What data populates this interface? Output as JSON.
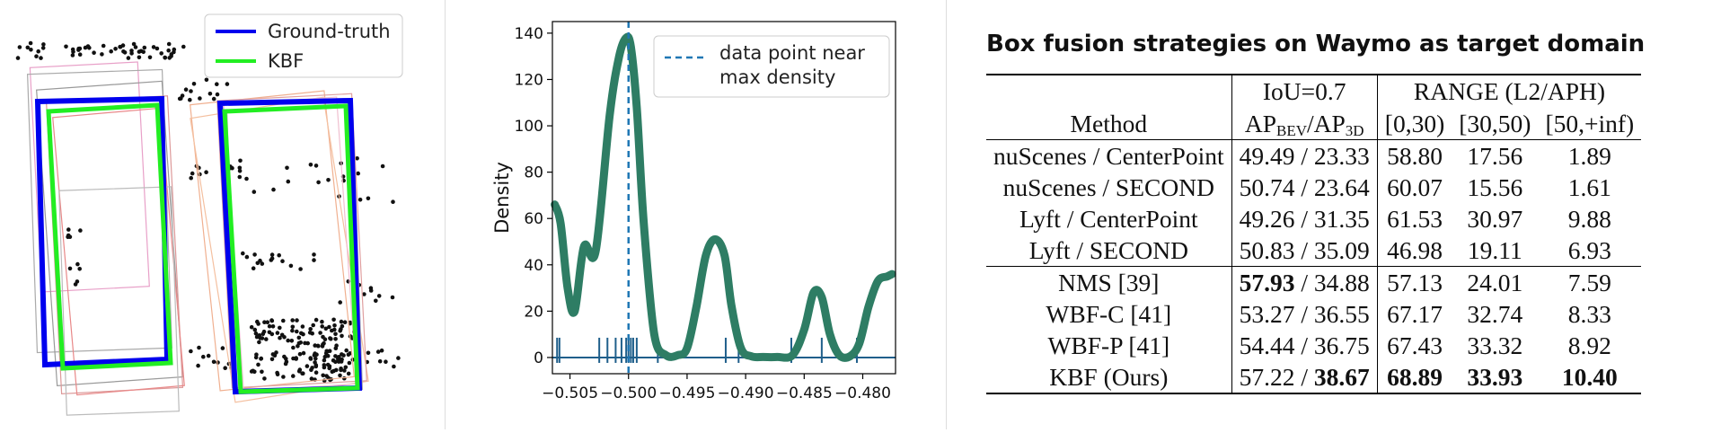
{
  "box_legend": {
    "items": [
      {
        "label": "Ground-truth",
        "color": "#0000ee"
      },
      {
        "label": "KBF",
        "color": "#22ee22"
      }
    ]
  },
  "chart_data": {
    "type": "line",
    "title": "",
    "xlabel": "",
    "ylabel": "Density",
    "xlim": [
      -0.5065,
      -0.4772
    ],
    "ylim": [
      -7,
      145
    ],
    "xticks": [
      -0.505,
      -0.5,
      -0.495,
      -0.49,
      -0.485,
      -0.48
    ],
    "xtick_labels": [
      "−0.505",
      "−0.500",
      "−0.495",
      "−0.490",
      "−0.485",
      "−0.480"
    ],
    "yticks": [
      0,
      20,
      40,
      60,
      80,
      100,
      120,
      140
    ],
    "line_color": "#2e7d64",
    "marker_color": "#1f5f8b",
    "density_curve": {
      "x": [
        -0.5063,
        -0.5058,
        -0.5052,
        -0.5046,
        -0.5038,
        -0.5028,
        -0.5016,
        -0.5008,
        -0.5002,
        -0.4998,
        -0.4993,
        -0.4987,
        -0.4978,
        -0.4968,
        -0.4958,
        -0.495,
        -0.4942,
        -0.4934,
        -0.4926,
        -0.4918,
        -0.4912,
        -0.4904,
        -0.4895,
        -0.4885,
        -0.4873,
        -0.486,
        -0.485,
        -0.4842,
        -0.4835,
        -0.4828,
        -0.482,
        -0.4811,
        -0.4803,
        -0.4795,
        -0.4787,
        -0.4779,
        -0.4775
      ],
      "y": [
        66,
        58,
        30,
        20,
        48,
        46,
        105,
        130,
        138,
        134,
        108,
        58,
        10,
        1,
        1,
        4,
        22,
        44,
        51,
        44,
        22,
        4,
        0.5,
        0.2,
        0.2,
        1,
        12,
        28,
        26,
        10,
        1,
        0.5,
        6,
        22,
        33,
        35,
        36
      ]
    },
    "rug_x": [
      -0.5061,
      -0.5059,
      -0.5025,
      -0.5018,
      -0.5011,
      -0.5006,
      -0.5002,
      -0.5,
      -0.4998,
      -0.4996,
      -0.4993,
      -0.4975,
      -0.4917,
      -0.4906,
      -0.4861,
      -0.4835,
      -0.4805
    ],
    "vline": {
      "x": -0.5,
      "style": "dashed"
    },
    "legend": {
      "label": "data point near\nmax density",
      "placement": "top-right"
    }
  },
  "table": {
    "title": "Box fusion strategies on Waymo as target domain",
    "header": {
      "iou": "IoU=0.7",
      "range": "RANGE (L2/APH)",
      "method": "Method",
      "ap_prefix": "AP",
      "ap_bev": "BEV",
      "ap_sep": "/AP",
      "ap_3d": "3D",
      "range_cols": [
        "[0,30)",
        "[30,50)",
        "[50,+inf)"
      ]
    },
    "group1": [
      {
        "method": "nuScenes / CenterPoint",
        "bev": "49.49",
        "ap3d": "23.33",
        "r1": "58.80",
        "r2": "17.56",
        "r3": "1.89"
      },
      {
        "method": "nuScenes / SECOND",
        "bev": "50.74",
        "ap3d": "23.64",
        "r1": "60.07",
        "r2": "15.56",
        "r3": "1.61"
      },
      {
        "method": "Lyft / CenterPoint",
        "bev": "49.26",
        "ap3d": "31.35",
        "r1": "61.53",
        "r2": "30.97",
        "r3": "9.88"
      },
      {
        "method": "Lyft / SECOND",
        "bev": "50.83",
        "ap3d": "35.09",
        "r1": "46.98",
        "r2": "19.11",
        "r3": "6.93"
      }
    ],
    "group2": [
      {
        "method": "NMS [39]",
        "bev": "57.93",
        "ap3d": "34.88",
        "r1": "57.13",
        "r2": "24.01",
        "r3": "7.59"
      },
      {
        "method": "WBF-C [41]",
        "bev": "53.27",
        "ap3d": "36.55",
        "r1": "67.17",
        "r2": "32.74",
        "r3": "8.33"
      },
      {
        "method": "WBF-P [41]",
        "bev": "54.44",
        "ap3d": "36.75",
        "r1": "67.43",
        "r2": "33.32",
        "r3": "8.92"
      },
      {
        "method": "KBF (Ours)",
        "bev": "57.22",
        "ap3d": "38.67",
        "r1": "68.89",
        "r2": "33.93",
        "r3": "10.40"
      }
    ]
  }
}
